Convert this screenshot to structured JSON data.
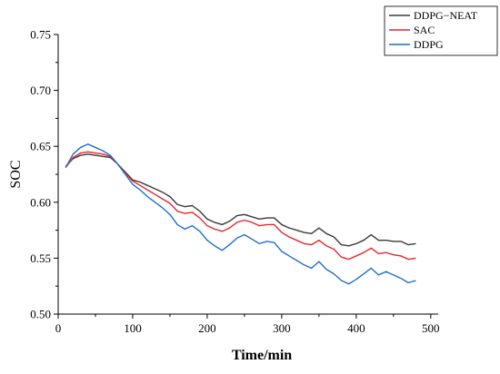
{
  "chart_data": {
    "type": "line",
    "title": "",
    "xlabel": "Time/min",
    "ylabel": "SOC",
    "xlim": [
      0,
      510
    ],
    "ylim": [
      0.5,
      0.75
    ],
    "xticks": [
      0,
      100,
      200,
      300,
      400,
      500
    ],
    "yticks": [
      0.5,
      0.55,
      0.6,
      0.65,
      0.7,
      0.75
    ],
    "xtick_labels": [
      "0",
      "100",
      "200",
      "300",
      "400",
      "500"
    ],
    "ytick_labels": [
      "0.50",
      "0.55",
      "0.60",
      "0.65",
      "0.70",
      "0.75"
    ],
    "grid": false,
    "legend_position": "top-right",
    "series": [
      {
        "name": "DDPG−NEAT",
        "color": "#3a3a3a",
        "x": [
          10,
          20,
          30,
          40,
          50,
          60,
          70,
          80,
          90,
          100,
          110,
          120,
          130,
          140,
          150,
          160,
          170,
          180,
          190,
          200,
          210,
          220,
          230,
          240,
          250,
          260,
          270,
          280,
          290,
          300,
          310,
          320,
          330,
          340,
          350,
          360,
          370,
          380,
          390,
          400,
          410,
          420,
          430,
          440,
          450,
          460,
          470,
          480
        ],
        "y": [
          0.632,
          0.639,
          0.642,
          0.643,
          0.642,
          0.641,
          0.64,
          0.634,
          0.627,
          0.62,
          0.618,
          0.615,
          0.612,
          0.609,
          0.605,
          0.598,
          0.596,
          0.597,
          0.592,
          0.585,
          0.582,
          0.58,
          0.583,
          0.588,
          0.589,
          0.587,
          0.585,
          0.586,
          0.586,
          0.58,
          0.577,
          0.575,
          0.573,
          0.572,
          0.577,
          0.572,
          0.569,
          0.562,
          0.561,
          0.563,
          0.566,
          0.571,
          0.566,
          0.566,
          0.565,
          0.565,
          0.562,
          0.563
        ]
      },
      {
        "name": "SAC",
        "color": "#e8262a",
        "x": [
          10,
          20,
          30,
          40,
          50,
          60,
          70,
          80,
          90,
          100,
          110,
          120,
          130,
          140,
          150,
          160,
          170,
          180,
          190,
          200,
          210,
          220,
          230,
          240,
          250,
          260,
          270,
          280,
          290,
          300,
          310,
          320,
          330,
          340,
          350,
          360,
          370,
          380,
          390,
          400,
          410,
          420,
          430,
          440,
          450,
          460,
          470,
          480
        ],
        "y": [
          0.631,
          0.64,
          0.644,
          0.645,
          0.644,
          0.643,
          0.641,
          0.634,
          0.626,
          0.619,
          0.615,
          0.611,
          0.607,
          0.603,
          0.599,
          0.592,
          0.59,
          0.591,
          0.586,
          0.579,
          0.576,
          0.574,
          0.577,
          0.582,
          0.584,
          0.582,
          0.579,
          0.58,
          0.58,
          0.573,
          0.569,
          0.566,
          0.563,
          0.562,
          0.566,
          0.561,
          0.558,
          0.551,
          0.549,
          0.552,
          0.555,
          0.559,
          0.554,
          0.555,
          0.553,
          0.552,
          0.549,
          0.55
        ]
      },
      {
        "name": "DDPG",
        "color": "#1f6fd1",
        "x": [
          10,
          20,
          30,
          40,
          50,
          60,
          70,
          80,
          90,
          100,
          110,
          120,
          130,
          140,
          150,
          160,
          170,
          180,
          190,
          200,
          210,
          220,
          230,
          240,
          250,
          260,
          270,
          280,
          290,
          300,
          310,
          320,
          330,
          340,
          350,
          360,
          370,
          380,
          390,
          400,
          410,
          420,
          430,
          440,
          450,
          460,
          470,
          480
        ],
        "y": [
          0.631,
          0.643,
          0.649,
          0.652,
          0.649,
          0.646,
          0.642,
          0.634,
          0.625,
          0.616,
          0.611,
          0.605,
          0.6,
          0.595,
          0.589,
          0.58,
          0.576,
          0.579,
          0.574,
          0.566,
          0.561,
          0.557,
          0.562,
          0.568,
          0.571,
          0.567,
          0.563,
          0.565,
          0.564,
          0.556,
          0.552,
          0.548,
          0.544,
          0.541,
          0.547,
          0.54,
          0.536,
          0.53,
          0.527,
          0.531,
          0.536,
          0.541,
          0.535,
          0.538,
          0.535,
          0.532,
          0.528,
          0.53
        ]
      }
    ]
  }
}
